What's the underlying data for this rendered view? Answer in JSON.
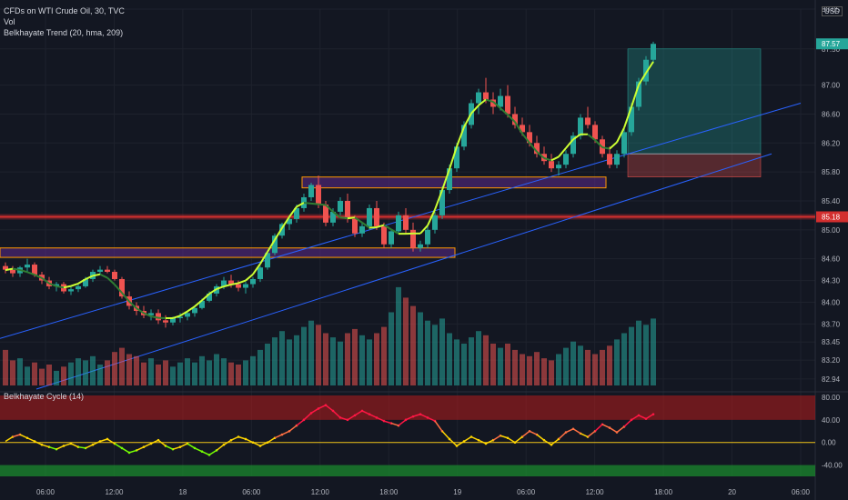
{
  "legend": {
    "symbol": "CFDs on WTI Crude Oil, 30, TVC",
    "volume": "Vol",
    "indicator": "Belkhayate Trend (20, hma, 209)",
    "cycle": "Belkhayate Cycle  (14)"
  },
  "currency": "USD",
  "colors": {
    "background": "#131722",
    "up": "#26a69a",
    "down": "#ef5350",
    "trend_up": "#ccff33",
    "trend_down": "#2f7d32",
    "trendline": "#2962ff",
    "resistance": "#d32f2f",
    "zone": "#5c2a8a",
    "zone_border": "#ff9800"
  },
  "chart_data": [
    {
      "type": "candlestick",
      "ylim": [
        82.8,
        88.05
      ],
      "y_ticks": [
        "88.05",
        "87.50",
        "87.00",
        "86.60",
        "86.20",
        "85.80",
        "85.40",
        "85.00",
        "84.60",
        "84.30",
        "84.00",
        "83.70",
        "83.45",
        "83.20",
        "82.94"
      ],
      "x_ticks": [
        "06:00",
        "12:00",
        "18",
        "06:00",
        "12:00",
        "18:00",
        "19",
        "06:00",
        "12:00",
        "18:00",
        "20",
        "06:00"
      ],
      "price_tags": [
        {
          "label": "87.57",
          "value": 87.57,
          "color": "#26a69a"
        },
        {
          "label": "85.18",
          "value": 85.18,
          "color": "#d32f2f"
        }
      ],
      "resistance_level": 85.18,
      "candles": [
        [
          84.5,
          84.55,
          84.4,
          84.45
        ],
        [
          84.45,
          84.5,
          84.35,
          84.4
        ],
        [
          84.4,
          84.5,
          84.35,
          84.48
        ],
        [
          84.48,
          84.6,
          84.42,
          84.52
        ],
        [
          84.52,
          84.55,
          84.35,
          84.38
        ],
        [
          84.38,
          84.42,
          84.25,
          84.3
        ],
        [
          84.3,
          84.35,
          84.18,
          84.22
        ],
        [
          84.22,
          84.28,
          84.15,
          84.25
        ],
        [
          84.25,
          84.28,
          84.12,
          84.15
        ],
        [
          84.15,
          84.22,
          84.1,
          84.18
        ],
        [
          84.18,
          84.25,
          84.14,
          84.22
        ],
        [
          84.22,
          84.35,
          84.2,
          84.32
        ],
        [
          84.32,
          84.45,
          84.28,
          84.42
        ],
        [
          84.42,
          84.5,
          84.38,
          84.45
        ],
        [
          84.45,
          84.5,
          84.4,
          84.42
        ],
        [
          84.42,
          84.45,
          84.3,
          84.32
        ],
        [
          84.32,
          84.35,
          84.05,
          84.08
        ],
        [
          84.08,
          84.15,
          83.9,
          83.95
        ],
        [
          83.95,
          84.0,
          83.82,
          83.88
        ],
        [
          83.88,
          83.95,
          83.78,
          83.82
        ],
        [
          83.82,
          83.9,
          83.75,
          83.85
        ],
        [
          83.85,
          83.9,
          83.7,
          83.75
        ],
        [
          83.75,
          83.82,
          83.65,
          83.72
        ],
        [
          83.72,
          83.8,
          83.68,
          83.78
        ],
        [
          83.78,
          83.85,
          83.72,
          83.8
        ],
        [
          83.8,
          83.88,
          83.75,
          83.85
        ],
        [
          83.85,
          83.95,
          83.8,
          83.92
        ],
        [
          83.92,
          84.05,
          83.9,
          84.02
        ],
        [
          84.02,
          84.15,
          84.0,
          84.12
        ],
        [
          84.12,
          84.25,
          84.08,
          84.22
        ],
        [
          84.22,
          84.35,
          84.18,
          84.3
        ],
        [
          84.3,
          84.38,
          84.2,
          84.25
        ],
        [
          84.25,
          84.3,
          84.15,
          84.2
        ],
        [
          84.2,
          84.28,
          84.12,
          84.25
        ],
        [
          84.25,
          84.35,
          84.2,
          84.32
        ],
        [
          84.32,
          84.5,
          84.28,
          84.48
        ],
        [
          84.48,
          84.7,
          84.45,
          84.68
        ],
        [
          84.68,
          84.95,
          84.65,
          84.92
        ],
        [
          84.92,
          85.1,
          84.88,
          85.08
        ],
        [
          85.08,
          85.2,
          85.0,
          85.15
        ],
        [
          85.15,
          85.35,
          85.1,
          85.3
        ],
        [
          85.3,
          85.5,
          85.25,
          85.45
        ],
        [
          85.45,
          85.65,
          85.4,
          85.62
        ],
        [
          85.62,
          85.75,
          85.3,
          85.35
        ],
        [
          85.35,
          85.4,
          85.05,
          85.1
        ],
        [
          85.1,
          85.3,
          85.05,
          85.25
        ],
        [
          85.25,
          85.45,
          85.2,
          85.4
        ],
        [
          85.4,
          85.5,
          85.1,
          85.15
        ],
        [
          85.15,
          85.2,
          84.9,
          84.95
        ],
        [
          84.95,
          85.1,
          84.9,
          85.05
        ],
        [
          85.05,
          85.35,
          85.0,
          85.3
        ],
        [
          85.3,
          85.4,
          85.0,
          85.05
        ],
        [
          85.05,
          85.1,
          84.75,
          84.8
        ],
        [
          84.8,
          85.0,
          84.75,
          84.98
        ],
        [
          84.98,
          85.25,
          84.95,
          85.2
        ],
        [
          85.2,
          85.3,
          84.95,
          85.0
        ],
        [
          85.0,
          85.1,
          84.7,
          84.75
        ],
        [
          84.75,
          84.85,
          84.7,
          84.8
        ],
        [
          84.8,
          85.05,
          84.75,
          85.0
        ],
        [
          85.0,
          85.25,
          84.95,
          85.2
        ],
        [
          85.2,
          85.6,
          85.15,
          85.55
        ],
        [
          85.55,
          85.9,
          85.5,
          85.85
        ],
        [
          85.85,
          86.2,
          85.8,
          86.15
        ],
        [
          86.15,
          86.5,
          86.1,
          86.45
        ],
        [
          86.45,
          86.8,
          86.4,
          86.75
        ],
        [
          86.75,
          86.95,
          86.6,
          86.9
        ],
        [
          86.9,
          87.1,
          86.75,
          86.8
        ],
        [
          86.8,
          86.9,
          86.6,
          86.7
        ],
        [
          86.7,
          86.95,
          86.65,
          86.85
        ],
        [
          86.85,
          87.0,
          86.55,
          86.6
        ],
        [
          86.6,
          86.7,
          86.4,
          86.45
        ],
        [
          86.45,
          86.55,
          86.3,
          86.35
        ],
        [
          86.35,
          86.45,
          86.15,
          86.2
        ],
        [
          86.2,
          86.3,
          86.0,
          86.05
        ],
        [
          86.05,
          86.15,
          85.9,
          85.95
        ],
        [
          85.95,
          86.05,
          85.8,
          85.85
        ],
        [
          85.85,
          85.95,
          85.75,
          85.9
        ],
        [
          85.9,
          86.1,
          85.85,
          86.05
        ],
        [
          86.05,
          86.35,
          86.0,
          86.3
        ],
        [
          86.3,
          86.6,
          86.25,
          86.55
        ],
        [
          86.55,
          86.7,
          86.4,
          86.45
        ],
        [
          86.45,
          86.5,
          86.2,
          86.25
        ],
        [
          86.25,
          86.3,
          86.0,
          86.05
        ],
        [
          86.05,
          86.15,
          85.85,
          85.9
        ],
        [
          85.9,
          86.1,
          85.85,
          86.05
        ],
        [
          86.05,
          86.4,
          86.0,
          86.35
        ],
        [
          86.35,
          86.75,
          86.3,
          86.7
        ],
        [
          86.7,
          87.1,
          86.65,
          87.05
        ],
        [
          87.05,
          87.4,
          87.0,
          87.35
        ],
        [
          87.35,
          87.6,
          87.3,
          87.57
        ]
      ],
      "volume": [
        34,
        24,
        26,
        18,
        22,
        16,
        20,
        14,
        18,
        22,
        26,
        24,
        28,
        20,
        24,
        32,
        36,
        30,
        28,
        22,
        26,
        20,
        24,
        18,
        22,
        26,
        22,
        28,
        24,
        30,
        26,
        22,
        20,
        24,
        28,
        34,
        40,
        46,
        52,
        44,
        48,
        56,
        62,
        58,
        50,
        46,
        42,
        50,
        54,
        48,
        44,
        50,
        56,
        70,
        94,
        84,
        76,
        70,
        62,
        58,
        64,
        50,
        44,
        40,
        46,
        52,
        48,
        40,
        36,
        40,
        34,
        30,
        28,
        32,
        26,
        24,
        30,
        36,
        42,
        38,
        34,
        30,
        34,
        38,
        44,
        50,
        56,
        62,
        58,
        64
      ],
      "trend_zones": [
        {
          "label": "resistance-zone-left",
          "y_low": 84.62,
          "y_high": 84.75
        },
        {
          "label": "resistance-zone-mid",
          "y_low": 85.58,
          "y_high": 85.73
        }
      ],
      "position": {
        "entry": 86.05,
        "target": 87.5,
        "stop": 85.73
      }
    },
    {
      "type": "line",
      "title": "Belkhayate Cycle  (14)",
      "ylim": [
        -60,
        80
      ],
      "y_ticks": [
        "80.00",
        "40.00",
        "0.00",
        "-40.00"
      ],
      "bands": {
        "upper": [
          40,
          80
        ],
        "lower": [
          -60,
          -40
        ]
      },
      "values": [
        2,
        10,
        14,
        8,
        2,
        -4,
        -8,
        -12,
        -6,
        -2,
        -8,
        -10,
        -4,
        2,
        6,
        -2,
        -10,
        -18,
        -14,
        -8,
        -2,
        4,
        -6,
        -12,
        -8,
        -2,
        -10,
        -16,
        -22,
        -14,
        -4,
        4,
        10,
        6,
        0,
        -6,
        0,
        8,
        14,
        20,
        30,
        40,
        52,
        60,
        66,
        56,
        44,
        40,
        48,
        56,
        50,
        44,
        38,
        34,
        30,
        40,
        46,
        50,
        44,
        38,
        20,
        6,
        -6,
        2,
        10,
        4,
        -2,
        4,
        12,
        8,
        0,
        10,
        20,
        14,
        4,
        -4,
        6,
        18,
        24,
        16,
        10,
        20,
        32,
        26,
        18,
        28,
        40,
        48,
        42,
        50
      ]
    }
  ]
}
